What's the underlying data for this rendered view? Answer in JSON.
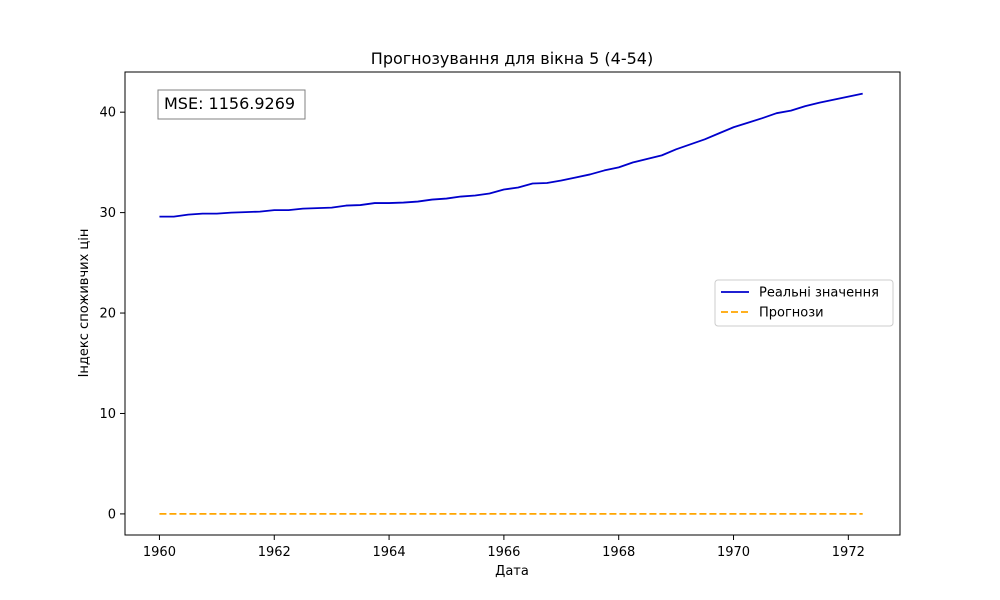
{
  "chart_data": {
    "type": "line",
    "title": "Прогнозування для вікна 5 (4-54)",
    "xlabel": "Дата",
    "ylabel": "Індекс споживчих цін",
    "xlim": [
      1959.4,
      1972.9
    ],
    "ylim": [
      -2.1,
      44
    ],
    "x_ticks": [
      1960,
      1962,
      1964,
      1966,
      1968,
      1970,
      1972
    ],
    "y_ticks": [
      0,
      10,
      20,
      30,
      40
    ],
    "legend_position": "center-right",
    "annotation": "MSE: 1156.9269",
    "grid": false,
    "series": [
      {
        "name": "Реальні значення",
        "color": "#0000cc",
        "style": "solid",
        "x": [
          1960.0,
          1960.25,
          1960.5,
          1960.75,
          1961.0,
          1961.25,
          1961.5,
          1961.75,
          1962.0,
          1962.25,
          1962.5,
          1962.75,
          1963.0,
          1963.25,
          1963.5,
          1963.75,
          1964.0,
          1964.25,
          1964.5,
          1964.75,
          1965.0,
          1965.25,
          1965.5,
          1965.75,
          1966.0,
          1966.25,
          1966.5,
          1966.75,
          1967.0,
          1967.25,
          1967.5,
          1967.75,
          1968.0,
          1968.25,
          1968.5,
          1968.75,
          1969.0,
          1969.25,
          1969.5,
          1969.75,
          1970.0,
          1970.25,
          1970.5,
          1970.75,
          1971.0,
          1971.25,
          1971.5,
          1971.75,
          1972.0,
          1972.25
        ],
        "values": [
          29.6,
          29.6,
          29.8,
          29.9,
          29.9,
          30.0,
          30.05,
          30.1,
          30.25,
          30.25,
          30.4,
          30.45,
          30.5,
          30.7,
          30.75,
          30.95,
          30.95,
          31.0,
          31.1,
          31.3,
          31.4,
          31.6,
          31.7,
          31.9,
          32.3,
          32.5,
          32.9,
          32.95,
          33.2,
          33.5,
          33.8,
          34.2,
          34.5,
          35.0,
          35.35,
          35.7,
          36.3,
          36.8,
          37.3,
          37.9,
          38.5,
          38.95,
          39.4,
          39.9,
          40.15,
          40.6,
          40.95,
          41.25,
          41.55,
          41.85
        ]
      },
      {
        "name": "Прогнози",
        "color": "#ffa500",
        "style": "dashed",
        "x": [
          1960.0,
          1972.25
        ],
        "values": [
          0.0,
          0.0
        ]
      }
    ]
  }
}
